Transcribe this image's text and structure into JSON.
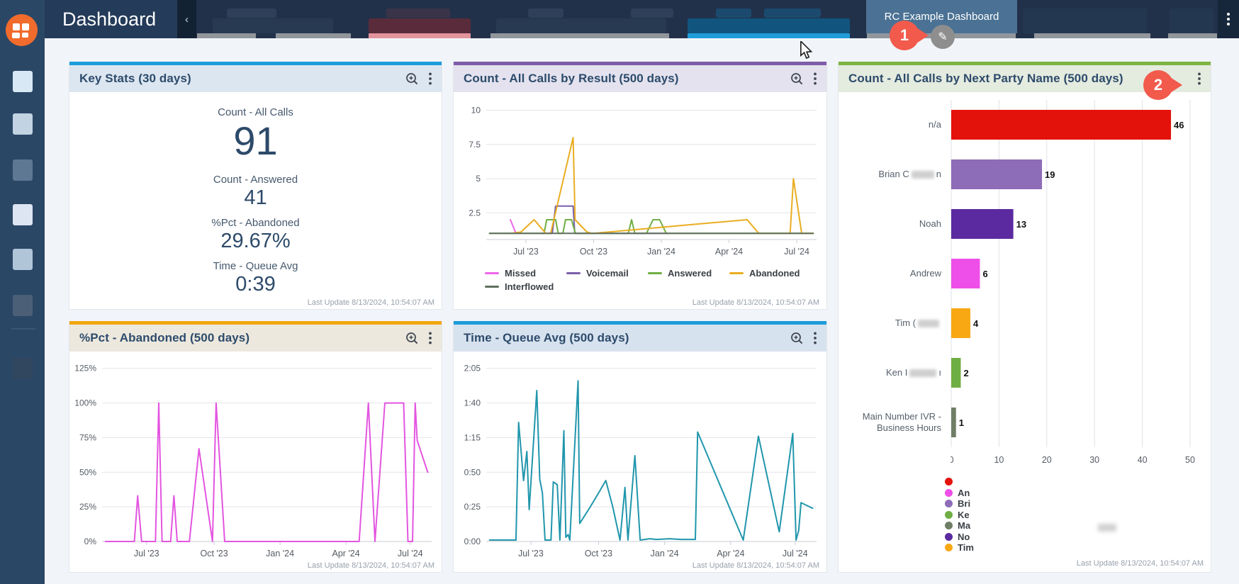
{
  "topbar": {
    "title": "Dashboard",
    "collapse_chevron": "‹",
    "active_tab": "RC Example Dashboard"
  },
  "annotations": {
    "pin1": "1",
    "pin2": "2",
    "pin_color": "#F25A4C"
  },
  "panels": {
    "key_stats": {
      "title": "Key Stats (30 days)",
      "accent": "#1C9DD9",
      "metrics": [
        {
          "label": "Count - All Calls",
          "value": "91"
        },
        {
          "label": "Count - Answered",
          "value": "41"
        },
        {
          "label": "%Pct - Abandoned",
          "value": "29.67%"
        },
        {
          "label": "Time - Queue Avg",
          "value": "0:39"
        }
      ],
      "last_update": "Last Update 8/13/2024, 10:54:07 AM"
    },
    "by_result": {
      "title": "Count - All Calls by Result (500 days)",
      "accent": "#7E5CAA",
      "last_update": "Last Update 8/13/2024, 10:54:07 AM"
    },
    "by_next_party": {
      "title": "Count - All Calls by Next Party Name (500 days)",
      "accent": "#7CB442",
      "last_update": "Last Update 8/13/2024, 10:54:07 AM"
    },
    "pct_abandoned": {
      "title": "%Pct - Abandoned (500 days)",
      "accent": "#F2A711",
      "last_update": "Last Update 8/13/2024, 10:54:07 AM"
    },
    "queue_avg": {
      "title": "Time - Queue Avg (500 days)",
      "accent": "#1C9DD9",
      "last_update": "Last Update 8/13/2024, 10:54:07 AM"
    }
  },
  "chart_data": [
    {
      "id": "calls-by-result",
      "type": "line",
      "title": "Count - All Calls by Result (500 days)",
      "ylim": [
        0.55,
        10.7
      ],
      "grid": true,
      "legend_position": "bottom",
      "yticks": [
        {
          "v": 2.5,
          "label": "2.5"
        },
        {
          "v": 5,
          "label": "5"
        },
        {
          "v": 7.5,
          "label": "7.5"
        },
        {
          "v": 10,
          "label": "10"
        }
      ],
      "xticks": [
        {
          "p": 12,
          "label": "Jul '23"
        },
        {
          "p": 32.5,
          "label": "Oct '23"
        },
        {
          "p": 53,
          "label": "Jan '24"
        },
        {
          "p": 73.5,
          "label": "Apr '24"
        },
        {
          "p": 94,
          "label": "Jul '24"
        }
      ],
      "series": [
        {
          "name": "Missed",
          "color": "#EE66E8",
          "points": [
            [
              7.3,
              2
            ],
            [
              9,
              1
            ],
            [
              10.2,
              1
            ]
          ]
        },
        {
          "name": "Voicemail",
          "color": "#7A5FA8",
          "points": [
            [
              16.5,
              1
            ],
            [
              20,
              1
            ],
            [
              21,
              3
            ],
            [
              26.3,
              3
            ],
            [
              26.8,
              1
            ],
            [
              42,
              1
            ],
            [
              55,
              1
            ]
          ]
        },
        {
          "name": "Answered",
          "color": "#6FAE44",
          "points": [
            [
              1,
              1
            ],
            [
              17.5,
              1
            ],
            [
              18.3,
              2
            ],
            [
              21,
              2
            ],
            [
              21.8,
              1
            ],
            [
              23.2,
              1
            ],
            [
              24,
              2
            ],
            [
              25.8,
              2
            ],
            [
              27,
              1
            ],
            [
              43,
              1
            ],
            [
              44,
              2
            ],
            [
              45,
              1
            ],
            [
              48.5,
              1
            ],
            [
              50.5,
              2
            ],
            [
              52.5,
              2
            ],
            [
              54.5,
              1
            ],
            [
              99,
              1
            ]
          ]
        },
        {
          "name": "Abandoned",
          "color": "#E9AD21",
          "points": [
            [
              7.5,
              1
            ],
            [
              10.5,
              1.1
            ],
            [
              14.5,
              2
            ],
            [
              18,
              1
            ],
            [
              19.5,
              1
            ],
            [
              26.3,
              8
            ],
            [
              26.9,
              2
            ],
            [
              30.5,
              1.1
            ],
            [
              32,
              1
            ],
            [
              44,
              1.25
            ],
            [
              60,
              1.6
            ],
            [
              79,
              2
            ],
            [
              82.5,
              1
            ],
            [
              84.5,
              1
            ],
            [
              92,
              1
            ],
            [
              93,
              5
            ],
            [
              95.5,
              1
            ],
            [
              99,
              1
            ]
          ]
        },
        {
          "name": "Interflowed",
          "color": "#5F6F5F",
          "points": [
            [
              1,
              1
            ],
            [
              99,
              1
            ]
          ]
        }
      ]
    },
    {
      "id": "calls-by-next-party",
      "type": "bar",
      "title": "Count - All Calls by Next Party Name (500 days)",
      "xlim": [
        0,
        50
      ],
      "xticks": [
        0,
        10,
        20,
        30,
        40,
        50
      ],
      "grid": true,
      "bars": [
        {
          "label": "n/a",
          "value": 46,
          "color": "#E3120B"
        },
        {
          "label": "Brian C",
          "redact": 32,
          "suffix": "n",
          "value": 19,
          "color": "#8D6CB8"
        },
        {
          "label": "Noah",
          "value": 13,
          "color": "#5B2AA0"
        },
        {
          "label": "Andrew",
          "value": 6,
          "color": "#EE4FE8"
        },
        {
          "label": "Tim (",
          "redact": 30,
          "value": 4,
          "color": "#F7A813"
        },
        {
          "label": "Ken I",
          "redact": 38,
          "suffix": "ı",
          "value": 2,
          "color": "#6FAE44"
        },
        {
          "label": "Main Number IVR - Business Hours",
          "value": 1,
          "color": "#6F7F66"
        }
      ],
      "legend": [
        {
          "color": "#E3120B",
          "label": ""
        },
        {
          "color": "#EE4FE8",
          "label": "An"
        },
        {
          "color": "#8D6CB8",
          "label": "Bri"
        },
        {
          "color": "#6FAE44",
          "label": "Ke"
        },
        {
          "color": "#6F7F66",
          "label": "Ma"
        },
        {
          "color": "#5B2AA0",
          "label": "No"
        },
        {
          "color": "#F7A813",
          "label": "Tim"
        }
      ]
    },
    {
      "id": "pct-abandoned",
      "type": "line",
      "title": "%Pct - Abandoned (500 days)",
      "ylim": [
        0,
        131
      ],
      "grid": true,
      "yticks": [
        {
          "v": 0,
          "label": "0%"
        },
        {
          "v": 25,
          "label": "25%"
        },
        {
          "v": 50,
          "label": "50%"
        },
        {
          "v": 75,
          "label": "75%"
        },
        {
          "v": 100,
          "label": "100%"
        },
        {
          "v": 125,
          "label": "125%"
        }
      ],
      "xticks": [
        {
          "p": 13.5,
          "label": "Jul '23"
        },
        {
          "p": 34,
          "label": "Oct '23"
        },
        {
          "p": 54,
          "label": "Jan '24"
        },
        {
          "p": 74,
          "label": "Apr '24"
        },
        {
          "p": 93.5,
          "label": "Jul '24"
        }
      ],
      "series": [
        {
          "name": "%Pct - Abandoned",
          "color": "#E355E0",
          "points": [
            [
              1,
              0
            ],
            [
              9.8,
              0
            ],
            [
              10.8,
              33
            ],
            [
              12,
              0
            ],
            [
              16.2,
              0
            ],
            [
              17.2,
              100
            ],
            [
              18.2,
              0
            ],
            [
              20.8,
              0
            ],
            [
              21.8,
              33
            ],
            [
              22.8,
              0
            ],
            [
              26.5,
              0
            ],
            [
              29.4,
              67
            ],
            [
              33.5,
              0
            ],
            [
              34.6,
              100
            ],
            [
              37.2,
              0
            ],
            [
              78,
              0
            ],
            [
              80.8,
              100
            ],
            [
              82.8,
              0
            ],
            [
              85.8,
              100
            ],
            [
              91.5,
              100
            ],
            [
              92.8,
              0
            ],
            [
              94.2,
              0
            ],
            [
              95,
              100
            ],
            [
              95.6,
              73
            ],
            [
              98.8,
              50
            ]
          ]
        }
      ]
    },
    {
      "id": "time-queue-avg",
      "type": "line",
      "title": "Time - Queue Avg (500 days)",
      "ylim": [
        0,
        131
      ],
      "grid": true,
      "yticks": [
        {
          "v": 0,
          "label": "0:00"
        },
        {
          "v": 25,
          "label": "0:25"
        },
        {
          "v": 50,
          "label": "0:50"
        },
        {
          "v": 75,
          "label": "1:15"
        },
        {
          "v": 100,
          "label": "1:40"
        },
        {
          "v": 125,
          "label": "2:05"
        }
      ],
      "xticks": [
        {
          "p": 13.5,
          "label": "Jul '23"
        },
        {
          "p": 34,
          "label": "Oct '23"
        },
        {
          "p": 54,
          "label": "Jan '24"
        },
        {
          "p": 74,
          "label": "Apr '24"
        },
        {
          "p": 93.5,
          "label": "Jul '24"
        }
      ],
      "series": [
        {
          "name": "Time - Queue Avg",
          "color": "#2096AC",
          "points": [
            [
              1,
              1
            ],
            [
              9,
              1
            ],
            [
              9.8,
              86
            ],
            [
              11.3,
              44
            ],
            [
              12.3,
              65
            ],
            [
              13,
              23
            ],
            [
              15.3,
              109
            ],
            [
              16.2,
              45
            ],
            [
              17,
              35
            ],
            [
              17.8,
              1
            ],
            [
              19.6,
              1
            ],
            [
              20.3,
              43
            ],
            [
              21.5,
              41
            ],
            [
              22.3,
              1
            ],
            [
              23.5,
              80
            ],
            [
              24.1,
              3
            ],
            [
              24.8,
              5
            ],
            [
              25.3,
              1
            ],
            [
              27.8,
              116
            ],
            [
              28.3,
              13
            ],
            [
              31.5,
              25
            ],
            [
              34,
              35
            ],
            [
              36.2,
              44
            ],
            [
              38.3,
              25
            ],
            [
              40.5,
              1
            ],
            [
              42,
              39
            ],
            [
              42.9,
              1
            ],
            [
              45,
              62
            ],
            [
              46.6,
              1
            ],
            [
              49.5,
              2
            ],
            [
              51.5,
              1.5
            ],
            [
              55.5,
              2
            ],
            [
              59,
              1.5
            ],
            [
              63.3,
              1.5
            ],
            [
              64,
              79
            ],
            [
              77.8,
              1
            ],
            [
              82.4,
              76
            ],
            [
              88.7,
              7
            ],
            [
              92.8,
              78
            ],
            [
              93.8,
              1
            ],
            [
              94.6,
              8
            ],
            [
              95.3,
              28
            ],
            [
              98.8,
              24
            ]
          ]
        }
      ]
    }
  ]
}
